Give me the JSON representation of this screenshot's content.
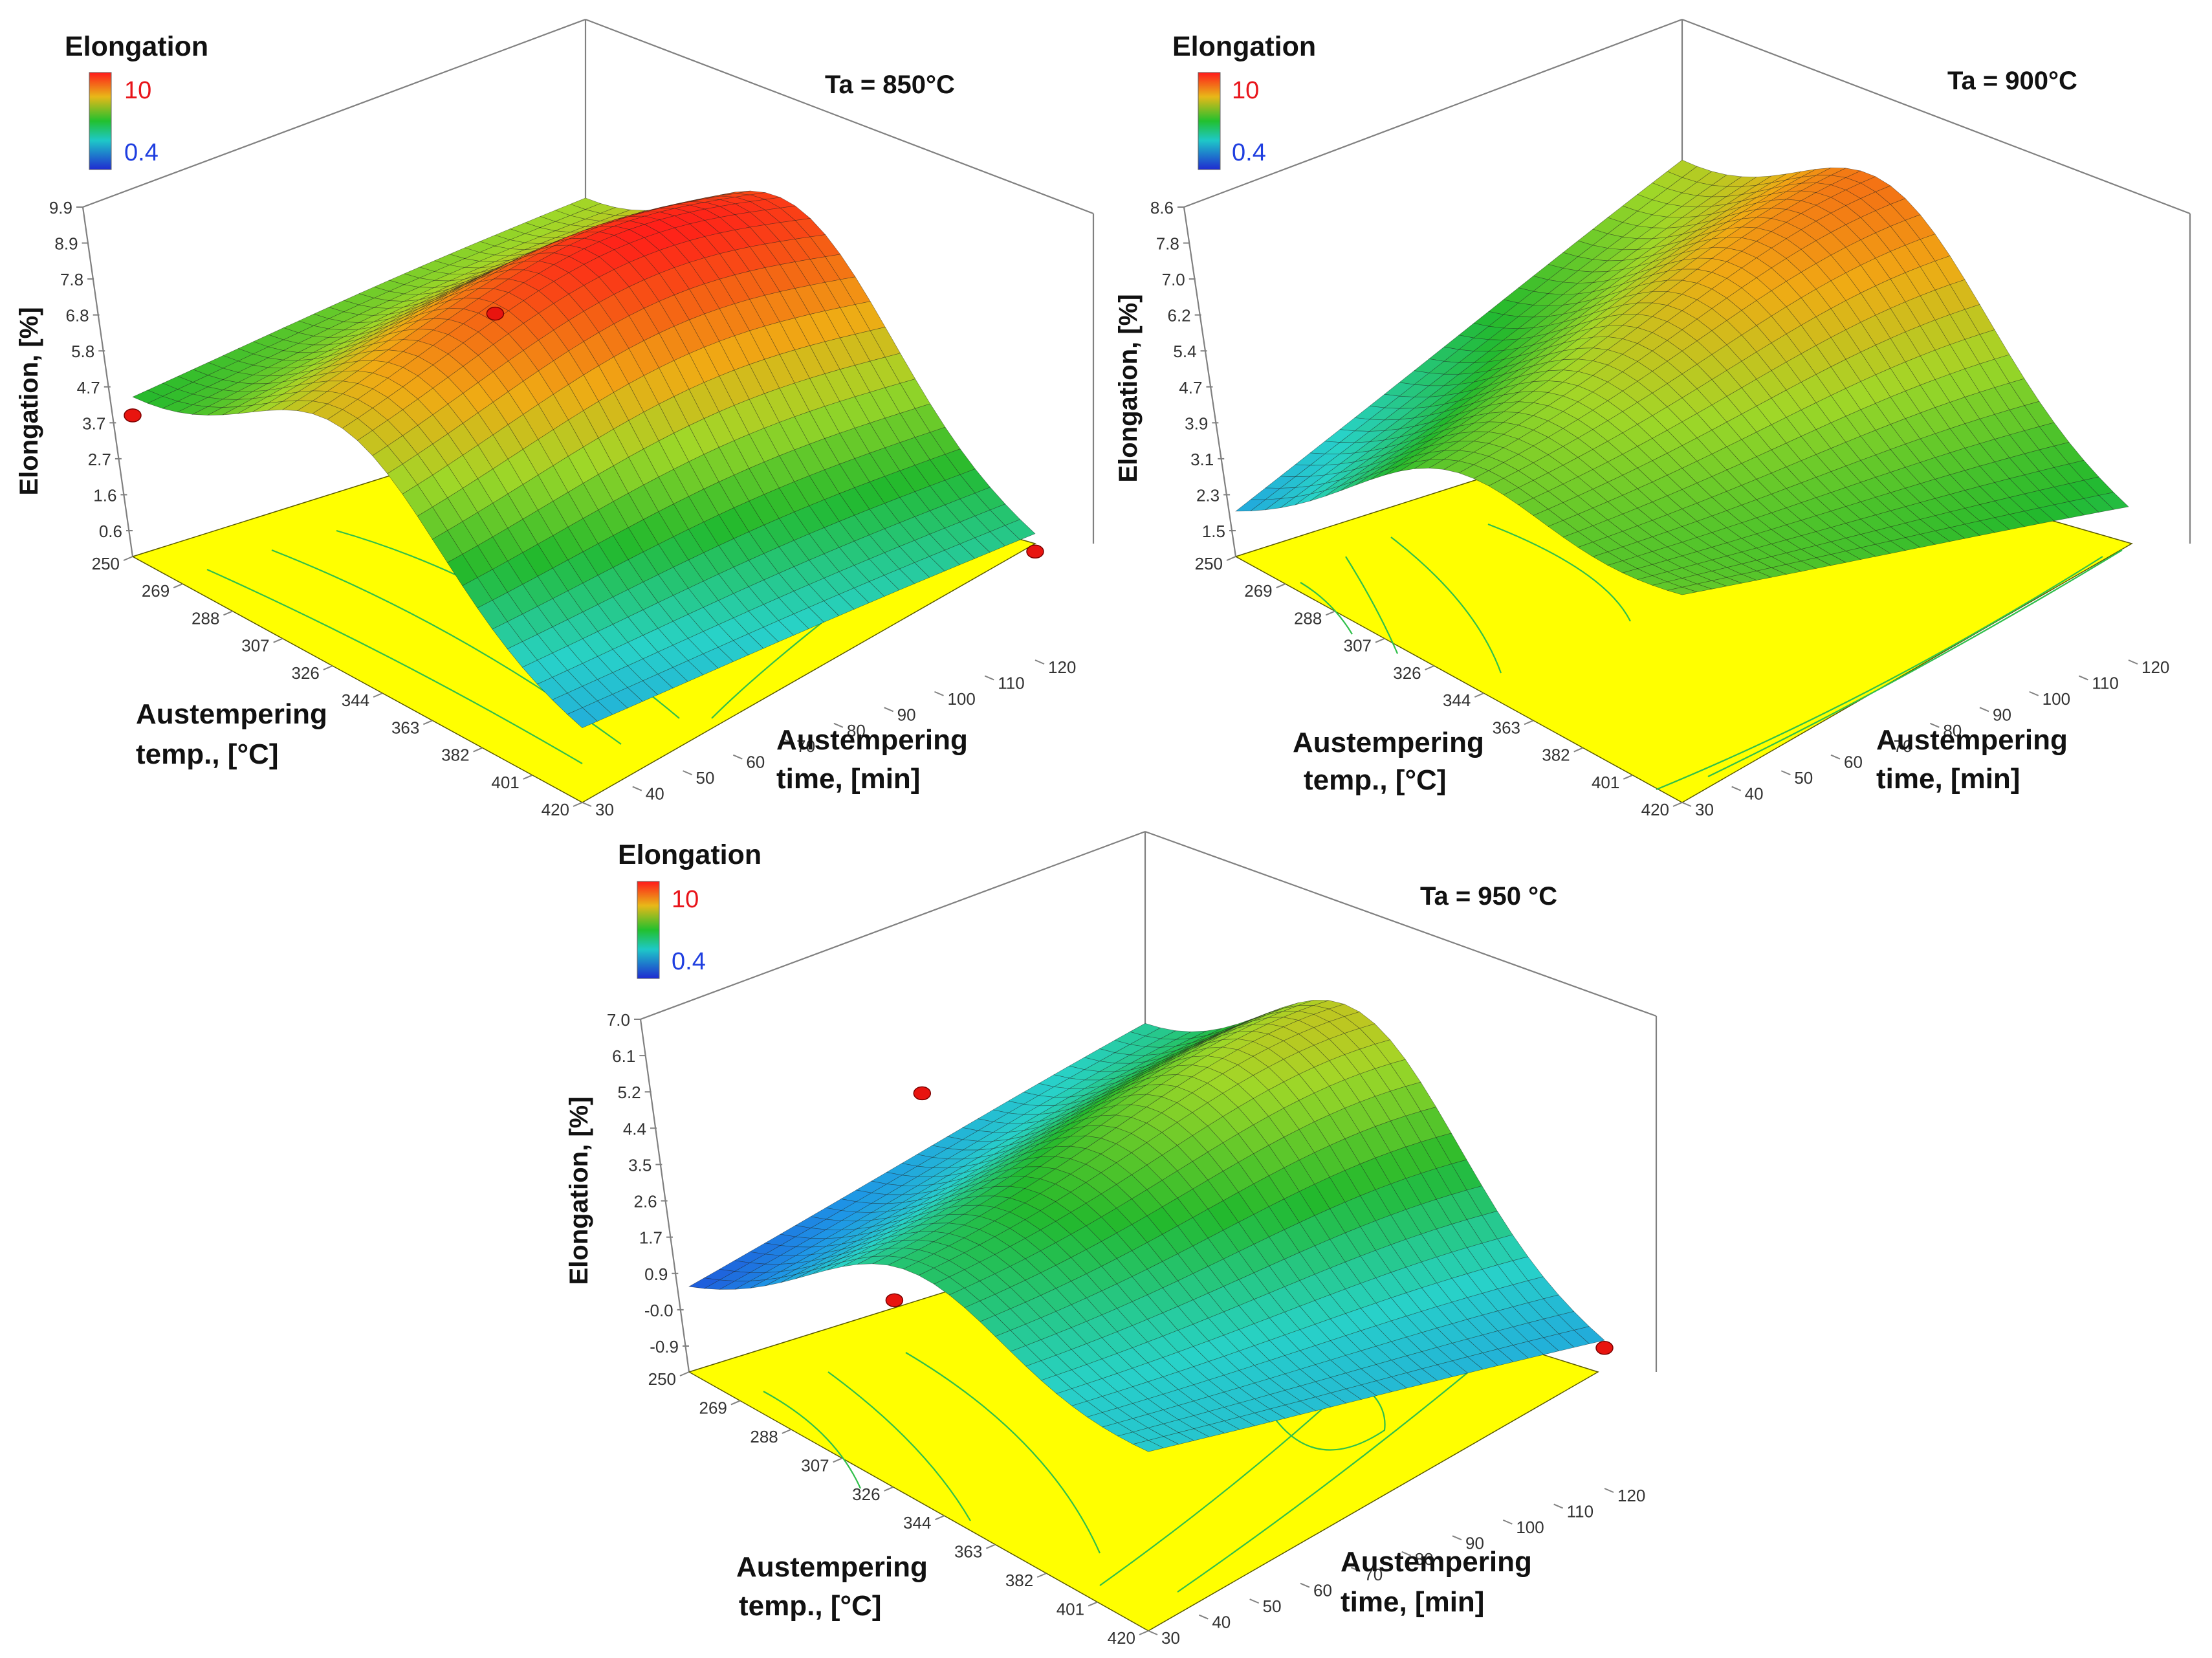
{
  "figure": {
    "description": "Response surfaces of elongation vs. austempering temperature and time at three austenitizing temperatures"
  },
  "colors": {
    "background": "#ffffff",
    "floor": "#ffff00",
    "frame": "#808080",
    "contour": "#2fbf4a",
    "design_point": "#e8140f",
    "scale_low": "#1f2bd0",
    "scale_high": "#ff1a1a"
  },
  "chart_data": [
    {
      "type": "surface3d",
      "title": "Ta = 850°C",
      "legend_title": "Elongation",
      "legend_max": "10",
      "legend_min": "0.4",
      "zlabel": "Elongation, [%]",
      "xlabel_line1": "Austempering",
      "xlabel_line2": "temp., [°C]",
      "ylabel_line1": "Austempering",
      "ylabel_line2": "time, [min]",
      "x_ticks": [
        "250",
        "269",
        "288",
        "307",
        "326",
        "344",
        "363",
        "382",
        "401",
        "420"
      ],
      "y_ticks": [
        "30",
        "40",
        "50",
        "60",
        "70",
        "80",
        "90",
        "100",
        "110",
        "120"
      ],
      "z_ticks": [
        "0.6",
        "1.6",
        "2.7",
        "3.7",
        "4.7",
        "5.8",
        "6.8",
        "7.8",
        "8.9",
        "9.9"
      ],
      "z_range": [
        0.6,
        9.9
      ],
      "corner_values": {
        "t250_m30": 4.7,
        "t420_m30": 2.5,
        "t250_m120": 6.2,
        "t420_m120": 3.9
      },
      "peak": {
        "temp_c": 330,
        "time_min": 85,
        "elongation": 9.9
      },
      "design_points": [
        {
          "temp_c": 250,
          "time_min": 30,
          "elongation": 4.5
        },
        {
          "temp_c": 420,
          "time_min": 120,
          "elongation": 3.6
        },
        {
          "temp_c": 330,
          "time_min": 60,
          "elongation": 9.2
        }
      ]
    },
    {
      "type": "surface3d",
      "title": "Ta = 900°C",
      "legend_title": "Elongation",
      "legend_max": "10",
      "legend_min": "0.4",
      "zlabel": "Elongation, [%]",
      "xlabel_line1": "Austempering",
      "xlabel_line2": "temp., [°C]",
      "ylabel_line1": "Austempering",
      "ylabel_line2": "time, [min]",
      "x_ticks": [
        "250",
        "269",
        "288",
        "307",
        "326",
        "344",
        "363",
        "382",
        "401",
        "420"
      ],
      "y_ticks": [
        "30",
        "40",
        "50",
        "60",
        "70",
        "80",
        "90",
        "100",
        "110",
        "120"
      ],
      "z_ticks": [
        "1.5",
        "2.3",
        "3.1",
        "3.9",
        "4.7",
        "5.4",
        "6.2",
        "7.0",
        "7.8",
        "8.6"
      ],
      "z_range": [
        1.5,
        8.6
      ],
      "corner_values": {
        "t250_m30": 2.3,
        "t420_m30": 5.8,
        "t250_m120": 6.6,
        "t420_m120": 4.6
      },
      "peak": {
        "temp_c": 330,
        "time_min": 110,
        "elongation": 8.6
      },
      "design_points": []
    },
    {
      "type": "surface3d",
      "title": "Ta = 950 °C",
      "legend_title": "Elongation",
      "legend_max": "10",
      "legend_min": "0.4",
      "zlabel": "Elongation, [%]",
      "xlabel_line1": "Austempering",
      "xlabel_line2": "temp., [°C]",
      "ylabel_line1": "Austempering",
      "ylabel_line2": "time, [min]",
      "x_ticks": [
        "250",
        "269",
        "288",
        "307",
        "326",
        "344",
        "363",
        "382",
        "401",
        "420"
      ],
      "y_ticks": [
        "30",
        "40",
        "50",
        "60",
        "70",
        "80",
        "90",
        "100",
        "110",
        "120"
      ],
      "z_ticks": [
        "-0.9",
        "-0.0",
        "0.9",
        "1.7",
        "2.6",
        "3.5",
        "4.4",
        "5.2",
        "6.1",
        "7.0"
      ],
      "z_range": [
        -0.9,
        7.0
      ],
      "corner_values": {
        "t250_m30": 0.9,
        "t420_m30": 3.2,
        "t250_m120": 3.6,
        "t420_m120": 2.4
      },
      "peak": {
        "temp_c": 330,
        "time_min": 110,
        "elongation": 7.0
      },
      "design_points": [
        {
          "temp_c": 280,
          "time_min": 60,
          "elongation": 5.6
        },
        {
          "temp_c": 420,
          "time_min": 120,
          "elongation": 2.4
        },
        {
          "temp_c": 326,
          "time_min": 30,
          "elongation": 3.5
        }
      ]
    }
  ]
}
